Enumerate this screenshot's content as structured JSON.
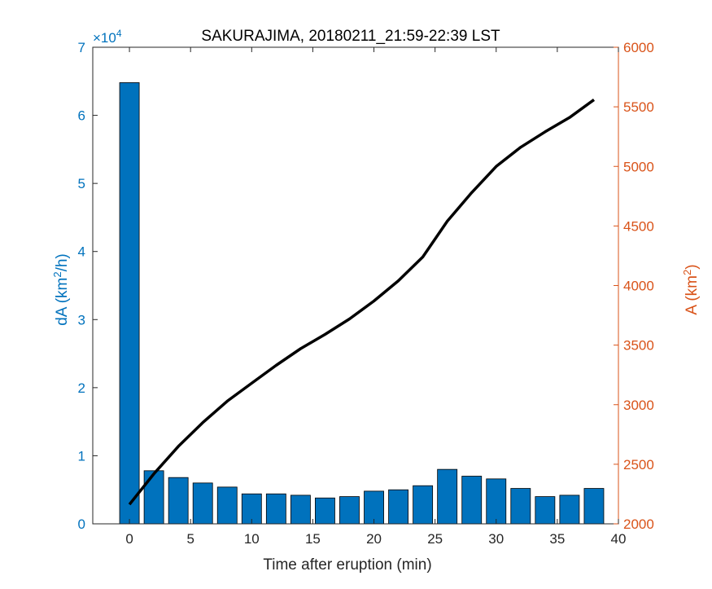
{
  "chart_data": {
    "type": "bar",
    "title": "SAKURAJIMA, 20180211_21:59-22:39 LST",
    "xlabel": "Time after eruption (min)",
    "xlim": [
      -3,
      40
    ],
    "xticks": [
      0,
      5,
      10,
      15,
      20,
      25,
      30,
      35,
      40
    ],
    "left_axis": {
      "label_main": "dA (km",
      "label_sup": "2",
      "label_end": "/h)",
      "exponent_base": "×10",
      "exponent_power": "4",
      "ylim": [
        0,
        7
      ],
      "ticks": [
        0,
        1,
        2,
        3,
        4,
        5,
        6,
        7
      ],
      "color": "#0072BD"
    },
    "right_axis": {
      "label_main": "A (km",
      "label_sup": "2",
      "label_end": ")",
      "ylim": [
        2000,
        6000
      ],
      "ticks": [
        2000,
        2500,
        3000,
        3500,
        4000,
        4500,
        5000,
        5500,
        6000
      ],
      "color": "#D95319"
    },
    "bars": {
      "x": [
        0,
        2,
        4,
        6,
        8,
        10,
        12,
        14,
        16,
        18,
        20,
        22,
        24,
        26,
        28,
        30,
        32,
        34,
        36,
        38
      ],
      "values": [
        6.48,
        0.78,
        0.68,
        0.6,
        0.54,
        0.44,
        0.44,
        0.42,
        0.38,
        0.4,
        0.48,
        0.5,
        0.56,
        0.8,
        0.7,
        0.66,
        0.52,
        0.4,
        0.42,
        0.52
      ],
      "color": "#0072BD"
    },
    "line": {
      "x": [
        0,
        2,
        4,
        6,
        8,
        10,
        12,
        14,
        16,
        18,
        20,
        22,
        24,
        26,
        28,
        30,
        32,
        34,
        36,
        38
      ],
      "values": [
        2163,
        2420,
        2650,
        2850,
        3030,
        3180,
        3330,
        3470,
        3590,
        3720,
        3870,
        4040,
        4240,
        4540,
        4780,
        5000,
        5160,
        5290,
        5410,
        5560
      ],
      "color": "#000000"
    }
  }
}
